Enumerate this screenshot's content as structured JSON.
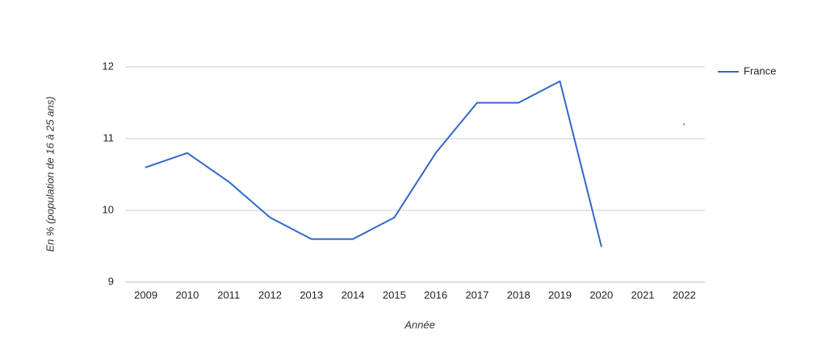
{
  "chart_data": {
    "type": "line",
    "x_label": "Année",
    "y_label": "En % (population de 16 à 25 ans)",
    "categories": [
      "2009",
      "2010",
      "2011",
      "2012",
      "2013",
      "2014",
      "2015",
      "2016",
      "2017",
      "2018",
      "2019",
      "2020",
      "2021",
      "2022"
    ],
    "series": [
      {
        "name": "France",
        "color": "#3366cc",
        "values": [
          10.6,
          10.8,
          10.4,
          9.9,
          9.6,
          9.6,
          9.9,
          10.8,
          11.5,
          11.5,
          11.8,
          9.5,
          null,
          11.2
        ]
      }
    ],
    "ylim": [
      9,
      12
    ],
    "yticks": [
      9,
      10,
      11,
      12
    ],
    "grid": true,
    "legend": "right"
  }
}
